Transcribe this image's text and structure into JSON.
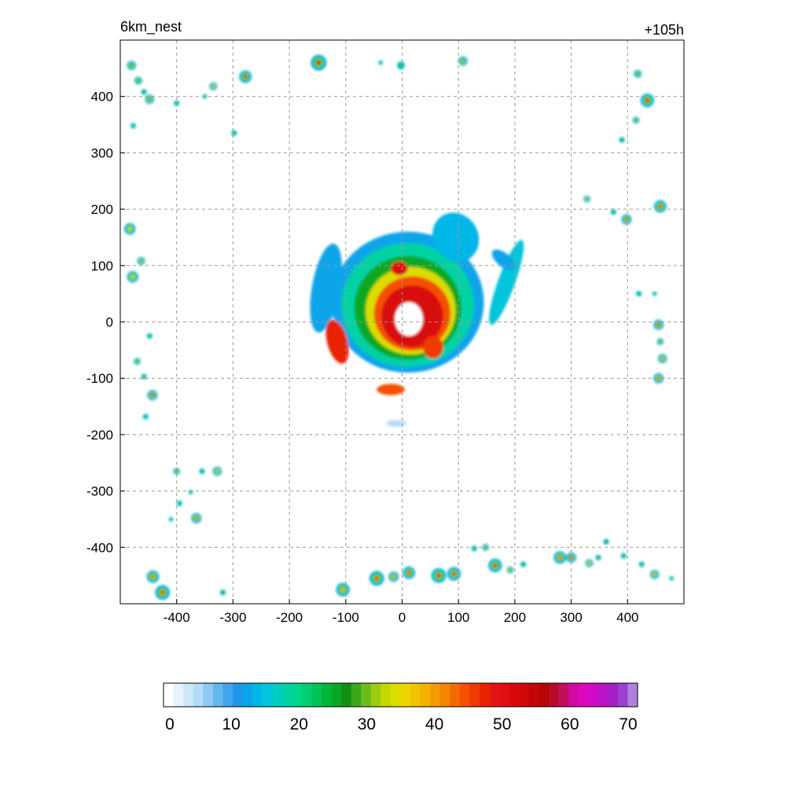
{
  "chart_data": {
    "type": "heatmap",
    "title_left": "6km_nest",
    "title_right": "+105h",
    "xlim": [
      -500,
      500
    ],
    "ylim": [
      -500,
      500
    ],
    "x_ticks": [
      -400,
      -300,
      -200,
      -100,
      0,
      100,
      200,
      300,
      400
    ],
    "y_ticks": [
      400,
      300,
      200,
      100,
      0,
      -100,
      -200,
      -300,
      -400
    ],
    "grid": true,
    "colorbar": {
      "orientation": "horizontal",
      "placement": "bottom",
      "min": 0,
      "max": 70,
      "tick_values": [
        0,
        10,
        20,
        30,
        40,
        50,
        60,
        70
      ],
      "tick_labels": [
        "0",
        "10",
        "20",
        "30",
        "40",
        "50",
        "60",
        "70"
      ],
      "palette": [
        "#ffffff",
        "#e6f3fc",
        "#cde8fa",
        "#b4dcf7",
        "#8dcbf3",
        "#64b8ef",
        "#3fa5ec",
        "#1e96ea",
        "#0aa4ea",
        "#00b6e6",
        "#00c5dc",
        "#00ccc0",
        "#00d2a4",
        "#00d68a",
        "#00cf70",
        "#00c454",
        "#00b63a",
        "#0aa822",
        "#128f12",
        "#3aa81a",
        "#6ebc1a",
        "#9ccc10",
        "#c4d800",
        "#dcdc00",
        "#ecd400",
        "#f0c400",
        "#f5b000",
        "#f59a00",
        "#f58400",
        "#f56a00",
        "#f55000",
        "#f03a00",
        "#ea2400",
        "#e51414",
        "#e01010",
        "#d80a0a",
        "#d00808",
        "#c40606",
        "#b80404",
        "#b80a2a",
        "#c0105a",
        "#d00aa0",
        "#dc08c0",
        "#d008c8",
        "#bc14c8",
        "#a81ec8",
        "#9c40d4",
        "#b080e0"
      ]
    },
    "features": [
      {
        "kind": "band",
        "x": 10,
        "y": 35,
        "rx": 135,
        "ry": 125,
        "angle": 0,
        "level": 12
      },
      {
        "kind": "band",
        "x": 10,
        "y": 30,
        "rx": 118,
        "ry": 110,
        "angle": 0,
        "level": 18
      },
      {
        "kind": "band",
        "x": 10,
        "y": 25,
        "rx": 95,
        "ry": 92,
        "angle": 0,
        "level": 25
      },
      {
        "kind": "band",
        "x": 15,
        "y": 20,
        "rx": 80,
        "ry": 78,
        "angle": 0,
        "level": 34
      },
      {
        "kind": "band",
        "x": 18,
        "y": 15,
        "rx": 68,
        "ry": 66,
        "angle": 0,
        "level": 44
      },
      {
        "kind": "band",
        "x": 18,
        "y": 10,
        "rx": 55,
        "ry": 55,
        "angle": 0,
        "level": 52
      },
      {
        "kind": "band",
        "x": 12,
        "y": 5,
        "rx": 25,
        "ry": 30,
        "angle": 0,
        "level": 0
      },
      {
        "kind": "band",
        "x": 95,
        "y": 150,
        "rx": 40,
        "ry": 45,
        "angle": -30,
        "level": 14
      },
      {
        "kind": "band",
        "x": 185,
        "y": 70,
        "rx": 15,
        "ry": 80,
        "angle": 20,
        "level": 15
      },
      {
        "kind": "band",
        "x": -135,
        "y": 60,
        "rx": 25,
        "ry": 80,
        "angle": 10,
        "level": 12
      },
      {
        "kind": "band",
        "x": -115,
        "y": -35,
        "rx": 18,
        "ry": 40,
        "angle": -15,
        "level": 48
      },
      {
        "kind": "band",
        "x": -5,
        "y": 95,
        "rx": 15,
        "ry": 12,
        "angle": 0,
        "level": 50
      },
      {
        "kind": "band",
        "x": -20,
        "y": -120,
        "rx": 25,
        "ry": 10,
        "angle": 0,
        "level": 45
      },
      {
        "kind": "band",
        "x": 55,
        "y": -45,
        "rx": 18,
        "ry": 20,
        "angle": 0,
        "level": 46
      },
      {
        "kind": "band",
        "x": 180,
        "y": 110,
        "rx": 25,
        "ry": 12,
        "angle": 40,
        "level": 12
      },
      {
        "kind": "band",
        "x": -10,
        "y": -180,
        "rx": 18,
        "ry": 6,
        "angle": 0,
        "level": 5
      },
      {
        "kind": "cell",
        "x": -480,
        "y": 455,
        "r": 8,
        "level": 30
      },
      {
        "kind": "cell",
        "x": -468,
        "y": 428,
        "r": 7,
        "level": 30
      },
      {
        "kind": "cell",
        "x": -448,
        "y": 395,
        "r": 8,
        "level": 32
      },
      {
        "kind": "cell",
        "x": -477,
        "y": 348,
        "r": 5,
        "level": 20
      },
      {
        "kind": "cell",
        "x": -400,
        "y": 388,
        "r": 5,
        "level": 22
      },
      {
        "kind": "cell",
        "x": -335,
        "y": 418,
        "r": 7,
        "level": 34
      },
      {
        "kind": "cell",
        "x": -298,
        "y": 335,
        "r": 5,
        "level": 22
      },
      {
        "kind": "cell",
        "x": -278,
        "y": 435,
        "r": 11,
        "level": 50
      },
      {
        "kind": "cell",
        "x": -148,
        "y": 460,
        "r": 14,
        "level": 52
      },
      {
        "kind": "cell",
        "x": -38,
        "y": 460,
        "r": 4,
        "level": 18
      },
      {
        "kind": "cell",
        "x": -2,
        "y": 455,
        "r": 7,
        "level": 22
      },
      {
        "kind": "cell",
        "x": 108,
        "y": 463,
        "r": 8,
        "level": 32
      },
      {
        "kind": "cell",
        "x": 418,
        "y": 440,
        "r": 7,
        "level": 30
      },
      {
        "kind": "cell",
        "x": 435,
        "y": 393,
        "r": 12,
        "level": 50
      },
      {
        "kind": "cell",
        "x": 415,
        "y": 358,
        "r": 6,
        "level": 30
      },
      {
        "kind": "cell",
        "x": 390,
        "y": 323,
        "r": 5,
        "level": 25
      },
      {
        "kind": "cell",
        "x": 328,
        "y": 218,
        "r": 6,
        "level": 32
      },
      {
        "kind": "cell",
        "x": 398,
        "y": 182,
        "r": 9,
        "level": 45
      },
      {
        "kind": "cell",
        "x": 375,
        "y": 195,
        "r": 5,
        "level": 22
      },
      {
        "kind": "cell",
        "x": 458,
        "y": 205,
        "r": 11,
        "level": 44
      },
      {
        "kind": "cell",
        "x": 420,
        "y": 50,
        "r": 5,
        "level": 22
      },
      {
        "kind": "cell",
        "x": 448,
        "y": 50,
        "r": 4,
        "level": 20
      },
      {
        "kind": "cell",
        "x": 455,
        "y": -5,
        "r": 9,
        "level": 48
      },
      {
        "kind": "cell",
        "x": 458,
        "y": -35,
        "r": 6,
        "level": 30
      },
      {
        "kind": "cell",
        "x": 462,
        "y": -65,
        "r": 8,
        "level": 38
      },
      {
        "kind": "cell",
        "x": 455,
        "y": -100,
        "r": 9,
        "level": 42
      },
      {
        "kind": "cell",
        "x": -483,
        "y": 165,
        "r": 10,
        "level": 34
      },
      {
        "kind": "cell",
        "x": -463,
        "y": 108,
        "r": 7,
        "level": 32
      },
      {
        "kind": "cell",
        "x": -478,
        "y": 80,
        "r": 10,
        "level": 36
      },
      {
        "kind": "cell",
        "x": -448,
        "y": -25,
        "r": 5,
        "level": 22
      },
      {
        "kind": "cell",
        "x": -470,
        "y": -70,
        "r": 6,
        "level": 30
      },
      {
        "kind": "cell",
        "x": -458,
        "y": -97,
        "r": 5,
        "level": 28
      },
      {
        "kind": "cell",
        "x": -443,
        "y": -130,
        "r": 9,
        "level": 46
      },
      {
        "kind": "cell",
        "x": -455,
        "y": -168,
        "r": 5,
        "level": 14
      },
      {
        "kind": "cell",
        "x": -400,
        "y": -265,
        "r": 6,
        "level": 30
      },
      {
        "kind": "cell",
        "x": -355,
        "y": -265,
        "r": 5,
        "level": 24
      },
      {
        "kind": "cell",
        "x": -328,
        "y": -265,
        "r": 8,
        "level": 34
      },
      {
        "kind": "cell",
        "x": -375,
        "y": -302,
        "r": 4,
        "level": 22
      },
      {
        "kind": "cell",
        "x": -395,
        "y": -322,
        "r": 5,
        "level": 22
      },
      {
        "kind": "cell",
        "x": -365,
        "y": -348,
        "r": 9,
        "level": 42
      },
      {
        "kind": "cell",
        "x": -410,
        "y": -350,
        "r": 4,
        "level": 18
      },
      {
        "kind": "cell",
        "x": -442,
        "y": -452,
        "r": 11,
        "level": 42
      },
      {
        "kind": "cell",
        "x": -425,
        "y": -480,
        "r": 13,
        "level": 44
      },
      {
        "kind": "cell",
        "x": -318,
        "y": -480,
        "r": 5,
        "level": 24
      },
      {
        "kind": "cell",
        "x": -105,
        "y": -475,
        "r": 12,
        "level": 38
      },
      {
        "kind": "cell",
        "x": -45,
        "y": -455,
        "r": 13,
        "level": 44
      },
      {
        "kind": "cell",
        "x": -15,
        "y": -452,
        "r": 9,
        "level": 40
      },
      {
        "kind": "cell",
        "x": 12,
        "y": -445,
        "r": 11,
        "level": 44
      },
      {
        "kind": "cell",
        "x": 65,
        "y": -450,
        "r": 13,
        "level": 48
      },
      {
        "kind": "cell",
        "x": 92,
        "y": -447,
        "r": 12,
        "level": 46
      },
      {
        "kind": "cell",
        "x": 128,
        "y": -402,
        "r": 5,
        "level": 24
      },
      {
        "kind": "cell",
        "x": 148,
        "y": -400,
        "r": 6,
        "level": 30
      },
      {
        "kind": "cell",
        "x": 165,
        "y": -432,
        "r": 12,
        "level": 48
      },
      {
        "kind": "cell",
        "x": 192,
        "y": -440,
        "r": 6,
        "level": 32
      },
      {
        "kind": "cell",
        "x": 215,
        "y": -430,
        "r": 5,
        "level": 24
      },
      {
        "kind": "cell",
        "x": 280,
        "y": -418,
        "r": 11,
        "level": 42
      },
      {
        "kind": "cell",
        "x": 300,
        "y": -418,
        "r": 9,
        "level": 48
      },
      {
        "kind": "cell",
        "x": 332,
        "y": -428,
        "r": 7,
        "level": 34
      },
      {
        "kind": "cell",
        "x": 348,
        "y": -418,
        "r": 5,
        "level": 28
      },
      {
        "kind": "cell",
        "x": 362,
        "y": -390,
        "r": 5,
        "level": 24
      },
      {
        "kind": "cell",
        "x": 393,
        "y": -415,
        "r": 5,
        "level": 22
      },
      {
        "kind": "cell",
        "x": 425,
        "y": -430,
        "r": 5,
        "level": 28
      },
      {
        "kind": "cell",
        "x": 448,
        "y": -448,
        "r": 8,
        "level": 38
      },
      {
        "kind": "cell",
        "x": 478,
        "y": -455,
        "r": 4,
        "level": 20
      },
      {
        "kind": "cell",
        "x": -458,
        "y": 408,
        "r": 5,
        "level": 26
      },
      {
        "kind": "cell",
        "x": -350,
        "y": 400,
        "r": 4,
        "level": 18
      }
    ]
  }
}
